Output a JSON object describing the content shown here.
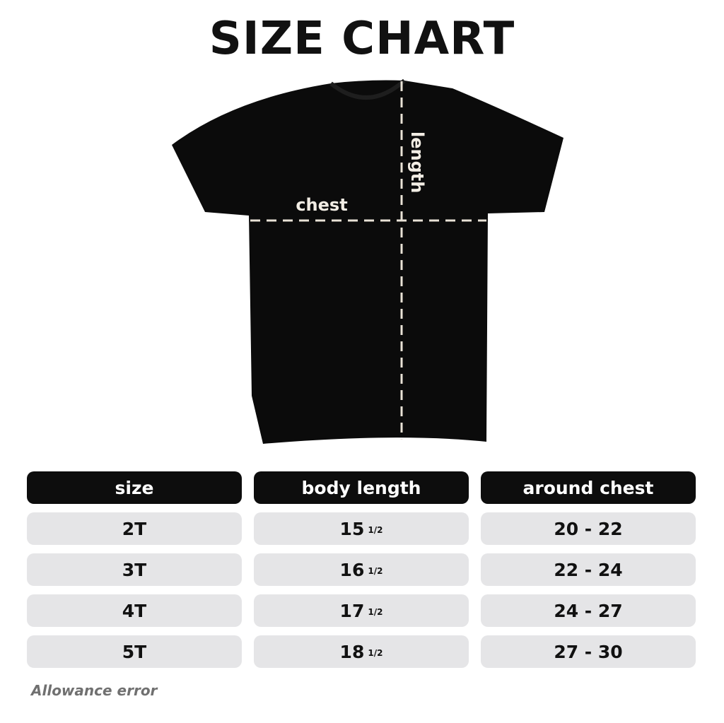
{
  "title": "SIZE CHART",
  "diagram": {
    "chest_label": "chest",
    "length_label": "length",
    "shirt_color": "#0b0b0b",
    "line_color": "#e8e2d6"
  },
  "table": {
    "headers": [
      "size",
      "body length",
      "around chest"
    ],
    "rows": [
      {
        "size": "2T",
        "length": "15",
        "length_frac": "1/2",
        "chest": "20 - 22"
      },
      {
        "size": "3T",
        "length": "16",
        "length_frac": "1/2",
        "chest": "22 - 24"
      },
      {
        "size": "4T",
        "length": "17",
        "length_frac": "1/2",
        "chest": "24 - 27"
      },
      {
        "size": "5T",
        "length": "18",
        "length_frac": "1/2",
        "chest": "27 - 30"
      }
    ]
  },
  "note": "Allowance error"
}
